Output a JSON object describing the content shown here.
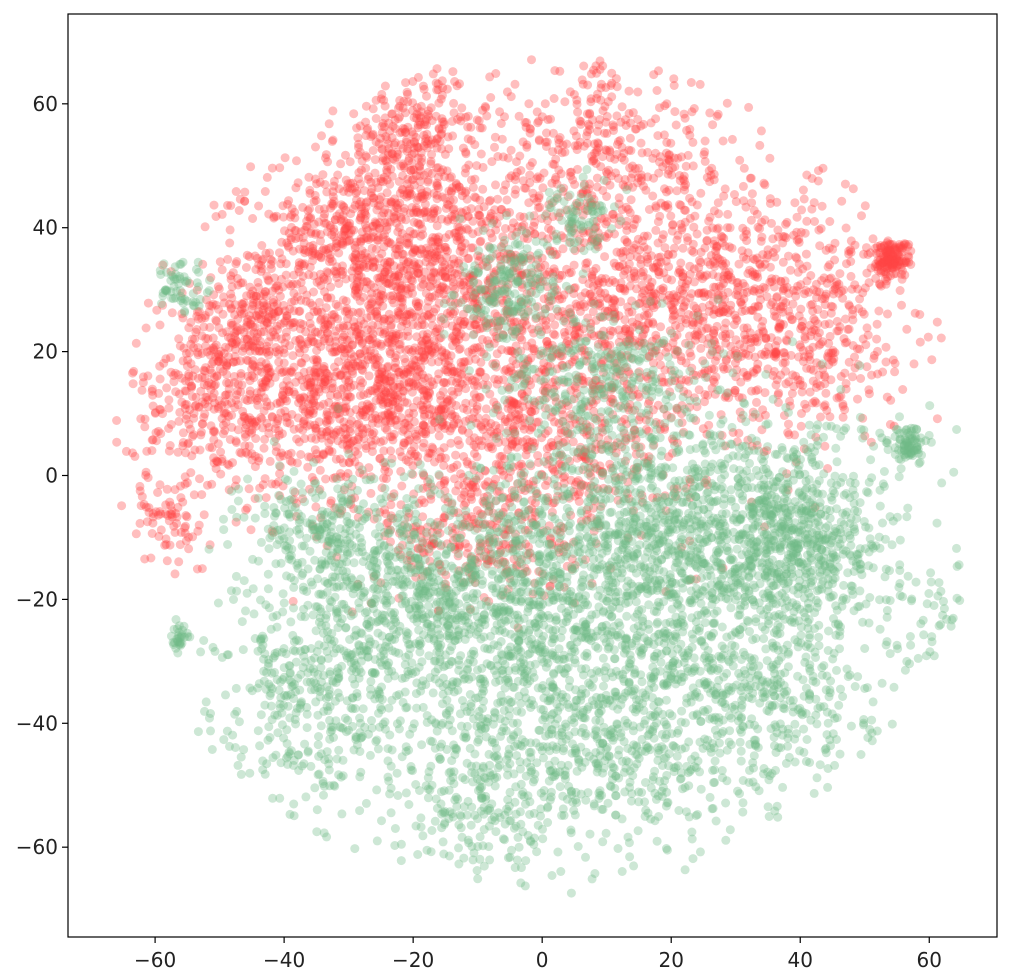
{
  "chart_data": {
    "type": "scatter",
    "title": "",
    "xlabel": "",
    "ylabel": "",
    "xlim": [
      -73.5,
      70.5
    ],
    "ylim": [
      -74.5,
      74.5
    ],
    "xticks": [
      -60,
      -40,
      -20,
      0,
      20,
      40,
      60
    ],
    "yticks": [
      -60,
      -40,
      -20,
      0,
      20,
      40,
      60
    ],
    "xtick_labels": [
      "−60",
      "−40",
      "−20",
      "0",
      "20",
      "40",
      "60"
    ],
    "ytick_labels": [
      "−60",
      "−40",
      "−20",
      "0",
      "20",
      "40",
      "60"
    ],
    "grid": false,
    "legend": false,
    "series": [
      {
        "color": "#ff4545",
        "clusters": [
          {
            "center": [
              -20,
              30
            ],
            "spread": [
              12,
              12
            ],
            "n": 1200
          },
          {
            "center": [
              -30,
              12
            ],
            "spread": [
              10,
              8
            ],
            "n": 700
          },
          {
            "center": [
              -52,
              12
            ],
            "spread": [
              6,
              8
            ],
            "n": 300
          },
          {
            "center": [
              -45,
              25
            ],
            "spread": [
              5,
              6
            ],
            "n": 200
          },
          {
            "center": [
              -20,
              55
            ],
            "spread": [
              6,
              5
            ],
            "n": 250
          },
          {
            "center": [
              10,
              52
            ],
            "spread": [
              10,
              7
            ],
            "n": 350
          },
          {
            "center": [
              30,
              30
            ],
            "spread": [
              12,
              10
            ],
            "n": 600
          },
          {
            "center": [
              10,
              25
            ],
            "spread": [
              12,
              10
            ],
            "n": 600
          },
          {
            "center": [
              0,
              5
            ],
            "spread": [
              12,
              8
            ],
            "n": 500
          },
          {
            "center": [
              -10,
              -10
            ],
            "spread": [
              8,
              6
            ],
            "n": 250
          },
          {
            "center": [
              40,
              20
            ],
            "spread": [
              8,
              8
            ],
            "n": 250
          },
          {
            "center": [
              -30,
              40
            ],
            "spread": [
              8,
              4
            ],
            "n": 250
          },
          {
            "center": [
              -58,
              -8
            ],
            "spread": [
              3,
              4
            ],
            "n": 60
          },
          {
            "center": [
              54,
              35
            ],
            "spread": [
              1.5,
              1.5
            ],
            "n": 150
          }
        ]
      },
      {
        "color": "#6fbb86",
        "clusters": [
          {
            "center": [
              25,
              -10
            ],
            "spread": [
              15,
              10
            ],
            "n": 1400
          },
          {
            "center": [
              0,
              -25
            ],
            "spread": [
              15,
              12
            ],
            "n": 1100
          },
          {
            "center": [
              -20,
              -20
            ],
            "spread": [
              10,
              8
            ],
            "n": 500
          },
          {
            "center": [
              -35,
              -35
            ],
            "spread": [
              8,
              10
            ],
            "n": 400
          },
          {
            "center": [
              10,
              -45
            ],
            "spread": [
              14,
              8
            ],
            "n": 500
          },
          {
            "center": [
              35,
              -35
            ],
            "spread": [
              10,
              8
            ],
            "n": 400
          },
          {
            "center": [
              10,
              15
            ],
            "spread": [
              8,
              6
            ],
            "n": 300
          },
          {
            "center": [
              -5,
              30
            ],
            "spread": [
              4,
              4
            ],
            "n": 200
          },
          {
            "center": [
              -35,
              -8
            ],
            "spread": [
              6,
              5
            ],
            "n": 200
          },
          {
            "center": [
              -56,
              30
            ],
            "spread": [
              2,
              2
            ],
            "n": 60
          },
          {
            "center": [
              57,
              5
            ],
            "spread": [
              1.5,
              1.5
            ],
            "n": 80
          },
          {
            "center": [
              -56,
              -26
            ],
            "spread": [
              1,
              1
            ],
            "n": 30
          },
          {
            "center": [
              60,
              -25
            ],
            "spread": [
              3,
              5
            ],
            "n": 40
          },
          {
            "center": [
              -10,
              -55
            ],
            "spread": [
              6,
              5
            ],
            "n": 150
          },
          {
            "center": [
              40,
              -10
            ],
            "spread": [
              6,
              6
            ],
            "n": 300
          },
          {
            "center": [
              5,
              42
            ],
            "spread": [
              3,
              3
            ],
            "n": 80
          }
        ]
      }
    ]
  }
}
